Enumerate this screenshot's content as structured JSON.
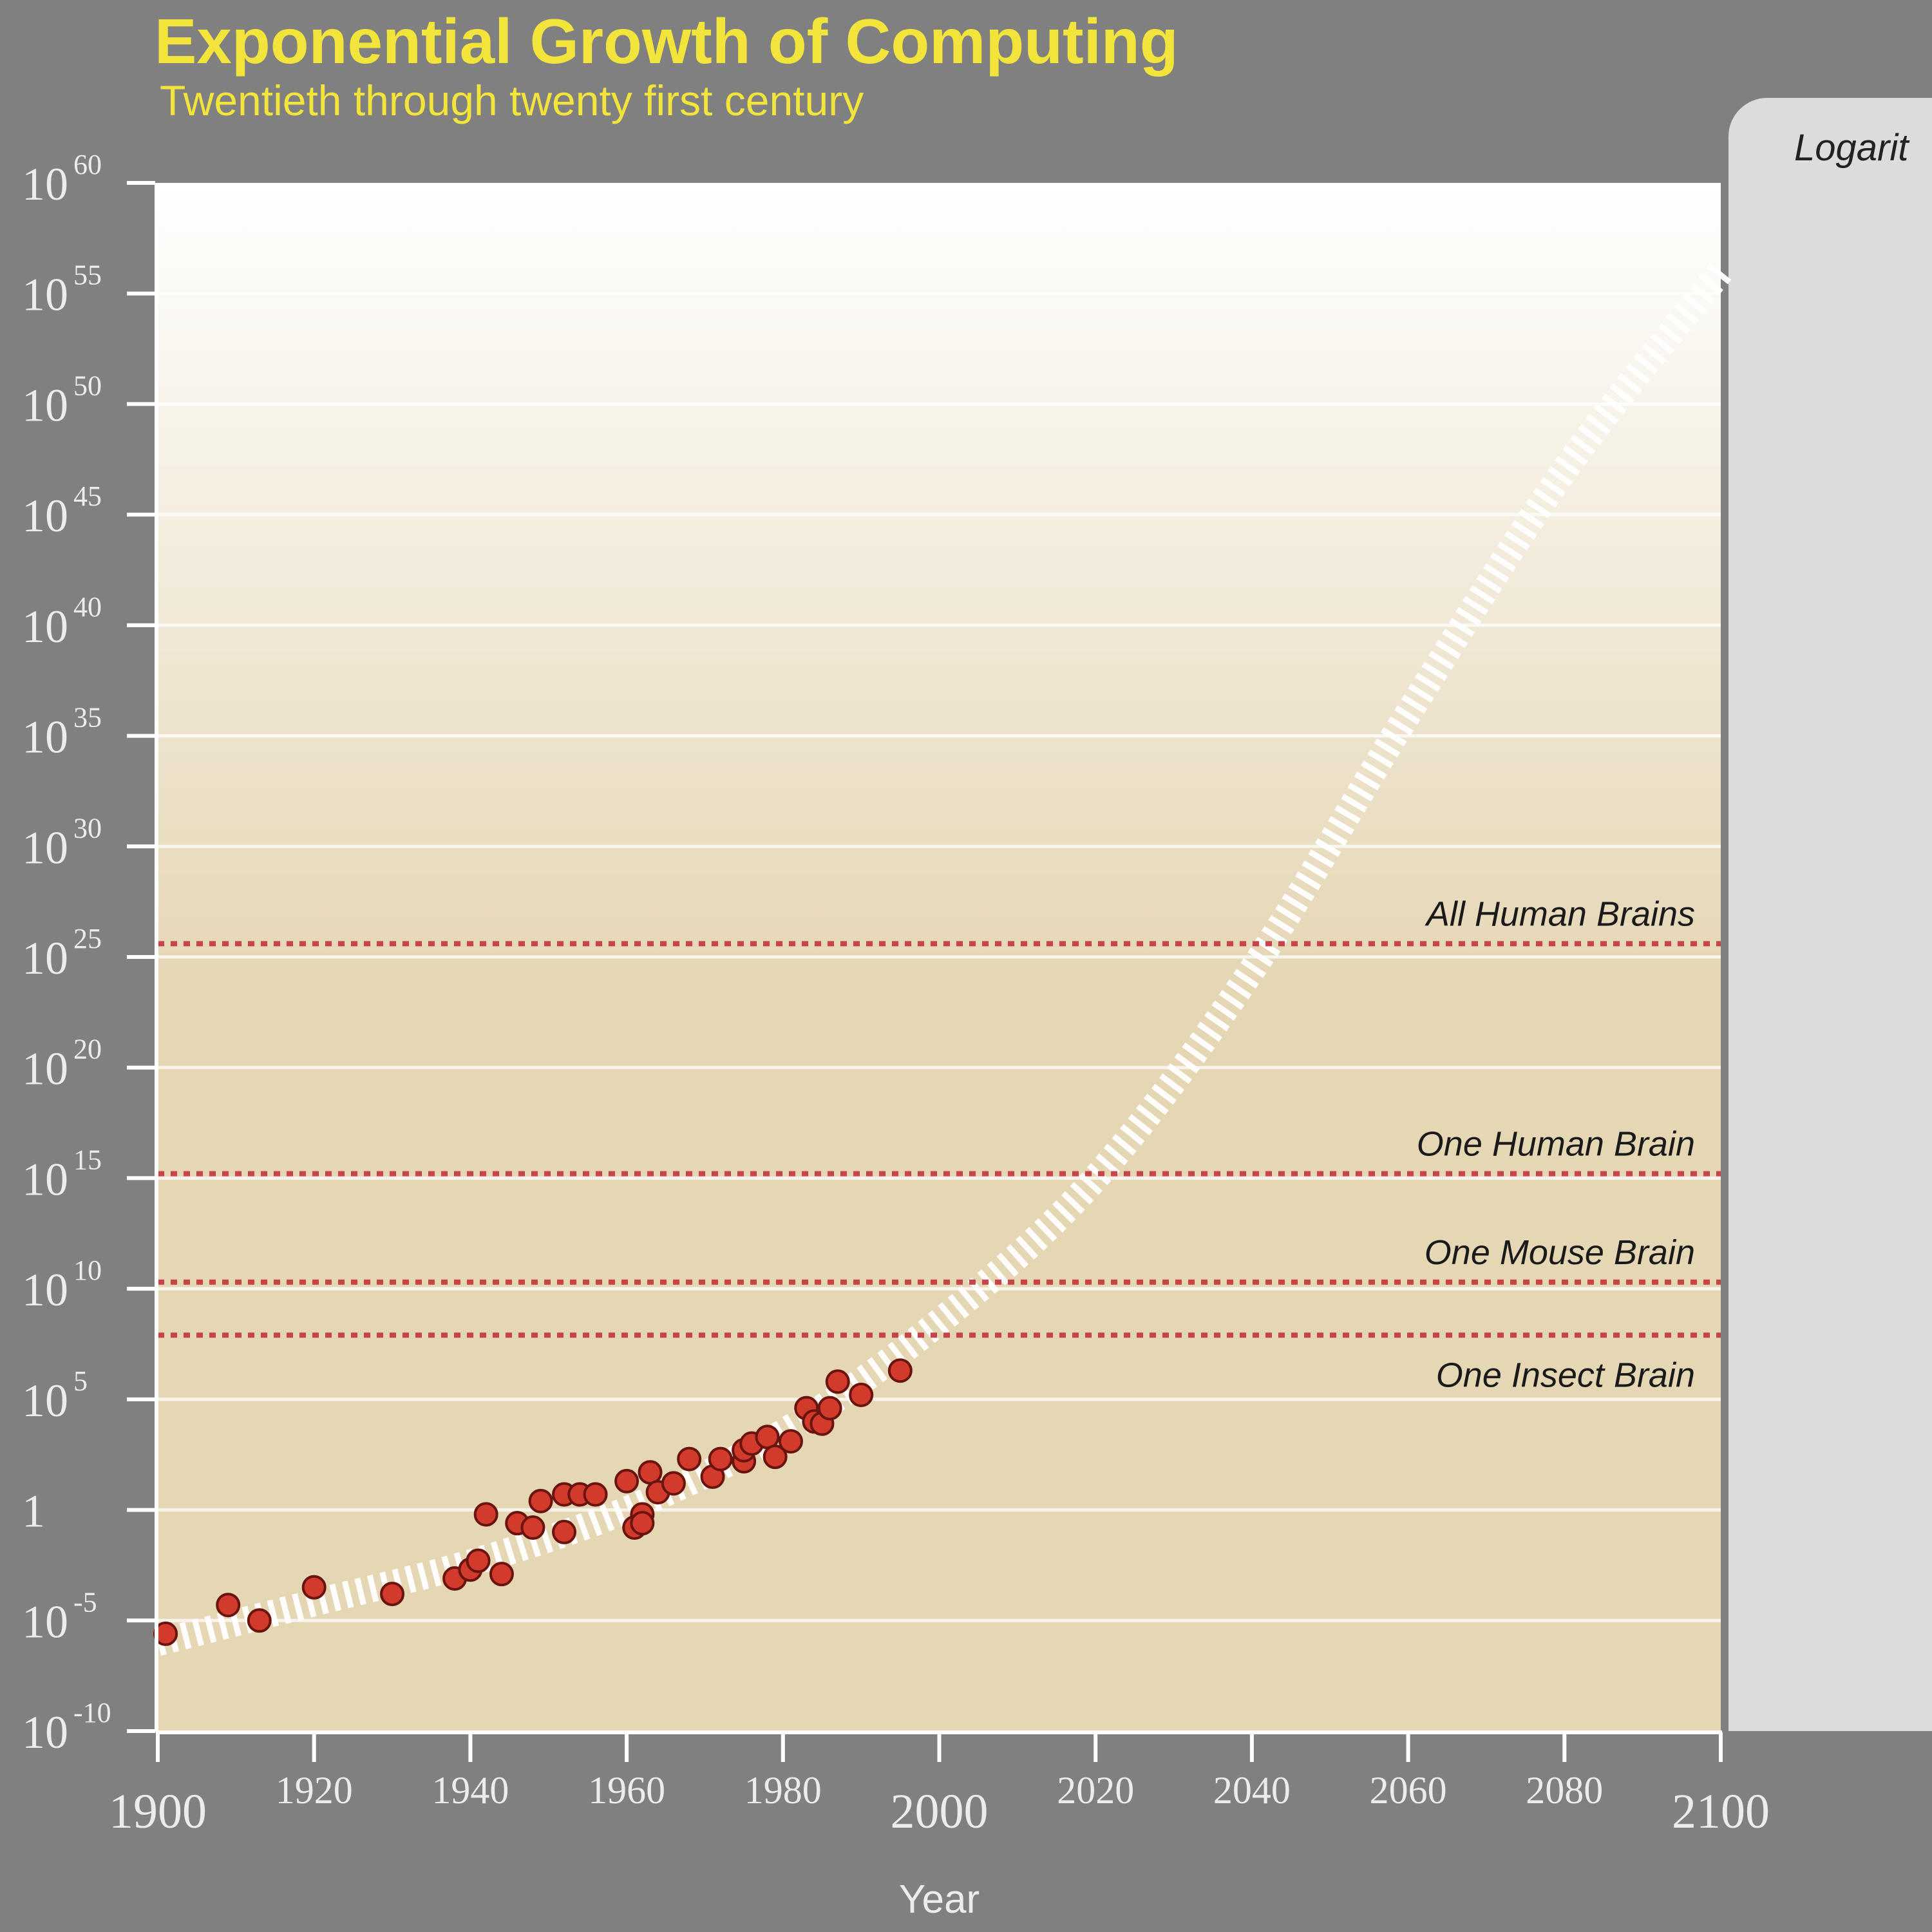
{
  "colors": {
    "title": "#f2e43a",
    "background": "#808080",
    "plot_top": "#ffffff",
    "plot_bottom": "#e5d6b4",
    "point_fill": "#d23a2c",
    "point_stroke": "#6a1410",
    "reference_line": "#c9434a",
    "trend": "#ffffff"
  },
  "side_panel": {
    "heading": "Logarit"
  },
  "chart_data": {
    "type": "scatter",
    "title": "Exponential Growth of Computing",
    "subtitle": "Twentieth through twenty first century",
    "xlabel": "Year",
    "ylabel": "",
    "xlim": [
      1900,
      2100
    ],
    "ylim": [
      -10,
      60
    ],
    "y_scale": "log10",
    "grid": true,
    "x_ticks": [
      {
        "value": 1900,
        "label": "1900"
      },
      {
        "value": 1920,
        "label": "1920"
      },
      {
        "value": 1940,
        "label": "1940"
      },
      {
        "value": 1960,
        "label": "1960"
      },
      {
        "value": 1980,
        "label": "1980"
      },
      {
        "value": 2000,
        "label": "2000"
      },
      {
        "value": 2020,
        "label": "2020"
      },
      {
        "value": 2040,
        "label": "2040"
      },
      {
        "value": 2060,
        "label": "2060"
      },
      {
        "value": 2080,
        "label": "2080"
      },
      {
        "value": 2100,
        "label": "2100"
      }
    ],
    "y_ticks": [
      {
        "value": 60,
        "base": "10",
        "exp": "60"
      },
      {
        "value": 55,
        "base": "10",
        "exp": "55"
      },
      {
        "value": 50,
        "base": "10",
        "exp": "50"
      },
      {
        "value": 45,
        "base": "10",
        "exp": "45"
      },
      {
        "value": 40,
        "base": "10",
        "exp": "40"
      },
      {
        "value": 35,
        "base": "10",
        "exp": "35"
      },
      {
        "value": 30,
        "base": "10",
        "exp": "30"
      },
      {
        "value": 25,
        "base": "10",
        "exp": "25"
      },
      {
        "value": 20,
        "base": "10",
        "exp": "20"
      },
      {
        "value": 15,
        "base": "10",
        "exp": "15"
      },
      {
        "value": 10,
        "base": "10",
        "exp": "10"
      },
      {
        "value": 5,
        "base": "10",
        "exp": "5"
      },
      {
        "value": 0,
        "base": "1",
        "exp": ""
      },
      {
        "value": -5,
        "base": "10",
        "exp": "-5"
      },
      {
        "value": -10,
        "base": "10",
        "exp": "-10"
      }
    ],
    "reference_lines": [
      {
        "label": "All Human Brains",
        "y": 25.6
      },
      {
        "label": "One Human Brain",
        "y": 15.2
      },
      {
        "label": "One Mouse Brain",
        "y": 10.3
      },
      {
        "label": "One Insect Brain",
        "y": 7.9
      }
    ],
    "trend": {
      "x": [
        1900,
        1920,
        1940,
        1960,
        1980,
        2000,
        2020,
        2040,
        2060,
        2080,
        2100
      ],
      "y": [
        -6,
        -4.2,
        -2.4,
        0,
        3.5,
        8.5,
        15,
        24.4,
        36,
        47,
        56
      ]
    },
    "points": {
      "x": [
        1901,
        1909,
        1913,
        1920,
        1930,
        1938,
        1940,
        1941,
        1942,
        1944,
        1946,
        1948,
        1949,
        1952,
        1952,
        1954,
        1956,
        1960,
        1961,
        1962,
        1962,
        1963,
        1964,
        1966,
        1968,
        1971,
        1972,
        1975,
        1975,
        1976,
        1978,
        1979,
        1981,
        1983,
        1984,
        1985,
        1986,
        1987,
        1990,
        1995
      ],
      "y": [
        -5.6,
        -4.3,
        -5.0,
        -3.5,
        -3.8,
        -3.1,
        -2.7,
        -2.3,
        -0.2,
        -2.9,
        -0.6,
        -0.8,
        0.4,
        0.7,
        -1.0,
        0.7,
        0.7,
        1.3,
        -0.8,
        -0.2,
        -0.6,
        1.7,
        0.8,
        1.2,
        2.3,
        1.5,
        2.3,
        2.2,
        2.7,
        3.0,
        3.3,
        2.4,
        3.1,
        4.6,
        4.0,
        3.9,
        4.6,
        5.8,
        5.2,
        6.3
      ]
    }
  }
}
